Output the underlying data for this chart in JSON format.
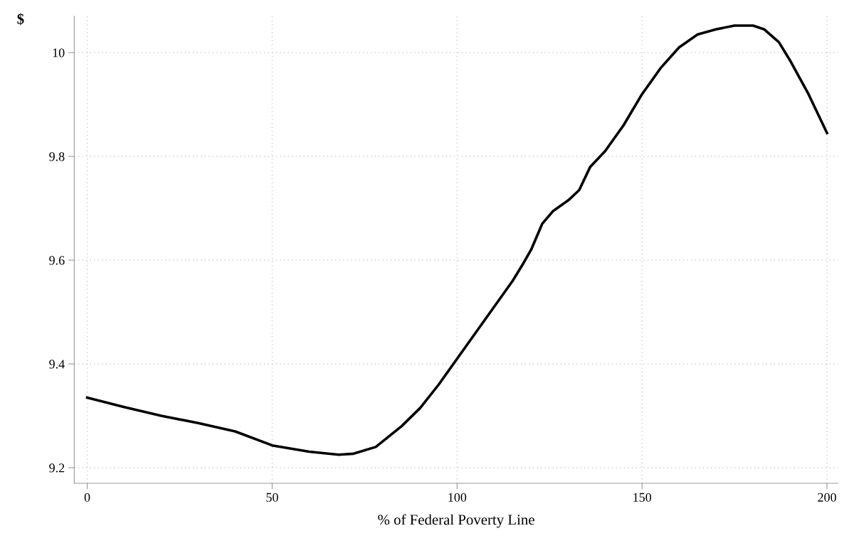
{
  "chart_data": {
    "type": "line",
    "xlabel": "% of Federal Poverty Line",
    "ylabel": "$",
    "x": [
      0,
      10,
      20,
      30,
      40,
      50,
      60,
      68,
      72,
      78,
      85,
      90,
      95,
      100,
      105,
      110,
      115,
      118,
      120,
      123,
      126,
      130,
      133,
      136,
      140,
      145,
      150,
      155,
      160,
      165,
      170,
      175,
      180,
      183,
      187,
      190,
      195,
      200
    ],
    "series": [
      {
        "color": "#000000",
        "values": [
          9.335,
          9.317,
          9.3,
          9.286,
          9.27,
          9.243,
          9.231,
          9.225,
          9.227,
          9.24,
          9.28,
          9.315,
          9.36,
          9.41,
          9.46,
          9.51,
          9.56,
          9.595,
          9.62,
          9.67,
          9.695,
          9.715,
          9.735,
          9.78,
          9.81,
          9.86,
          9.92,
          9.97,
          10.01,
          10.035,
          10.045,
          10.052,
          10.052,
          10.045,
          10.02,
          9.985,
          9.92,
          9.845
        ]
      }
    ],
    "xlim": [
      -3.5,
      203
    ],
    "ylim": [
      9.17,
      10.07
    ],
    "xticks": [
      0,
      50,
      100,
      150,
      200
    ],
    "yticks": [
      {
        "value": 9.2,
        "label": "9.2"
      },
      {
        "value": 9.4,
        "label": "9.4"
      },
      {
        "value": 9.6,
        "label": "9.6"
      },
      {
        "value": 9.8,
        "label": "9.8"
      },
      {
        "value": 10,
        "label": "10"
      }
    ],
    "grid": true,
    "line_style": "solid",
    "marker": "none"
  }
}
